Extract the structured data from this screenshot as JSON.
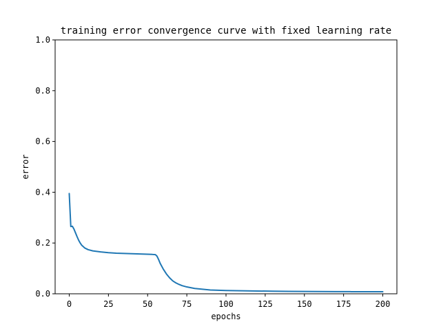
{
  "chart_data": {
    "type": "line",
    "title": "training error convergence curve with fixed learning rate",
    "xlabel": "epochs",
    "ylabel": "error",
    "xlim": [
      -9,
      209
    ],
    "ylim": [
      0,
      1
    ],
    "xticks": [
      0,
      25,
      50,
      75,
      100,
      125,
      150,
      175,
      200
    ],
    "yticks": [
      0.0,
      0.2,
      0.4,
      0.6,
      0.8,
      1.0
    ],
    "ytick_labels": [
      "0.0",
      "0.2",
      "0.4",
      "0.6",
      "0.8",
      "1.0"
    ],
    "grid": false,
    "legend": "none",
    "series": [
      {
        "color": "#1f77b4",
        "x": [
          0,
          1,
          2,
          3,
          4,
          5,
          6,
          7,
          8,
          10,
          12,
          15,
          20,
          25,
          30,
          35,
          40,
          45,
          50,
          53,
          55,
          56,
          57,
          58,
          60,
          62,
          64,
          66,
          68,
          70,
          72,
          75,
          80,
          85,
          90,
          95,
          100,
          110,
          120,
          130,
          140,
          150,
          160,
          170,
          180,
          190,
          200
        ],
        "y": [
          0.395,
          0.265,
          0.266,
          0.255,
          0.24,
          0.225,
          0.211,
          0.2,
          0.191,
          0.18,
          0.174,
          0.169,
          0.165,
          0.162,
          0.16,
          0.159,
          0.158,
          0.157,
          0.156,
          0.155,
          0.154,
          0.148,
          0.135,
          0.12,
          0.097,
          0.078,
          0.063,
          0.051,
          0.043,
          0.037,
          0.032,
          0.027,
          0.021,
          0.018,
          0.015,
          0.014,
          0.013,
          0.012,
          0.011,
          0.01,
          0.0095,
          0.009,
          0.0088,
          0.0085,
          0.0083,
          0.0082,
          0.008
        ]
      }
    ]
  }
}
